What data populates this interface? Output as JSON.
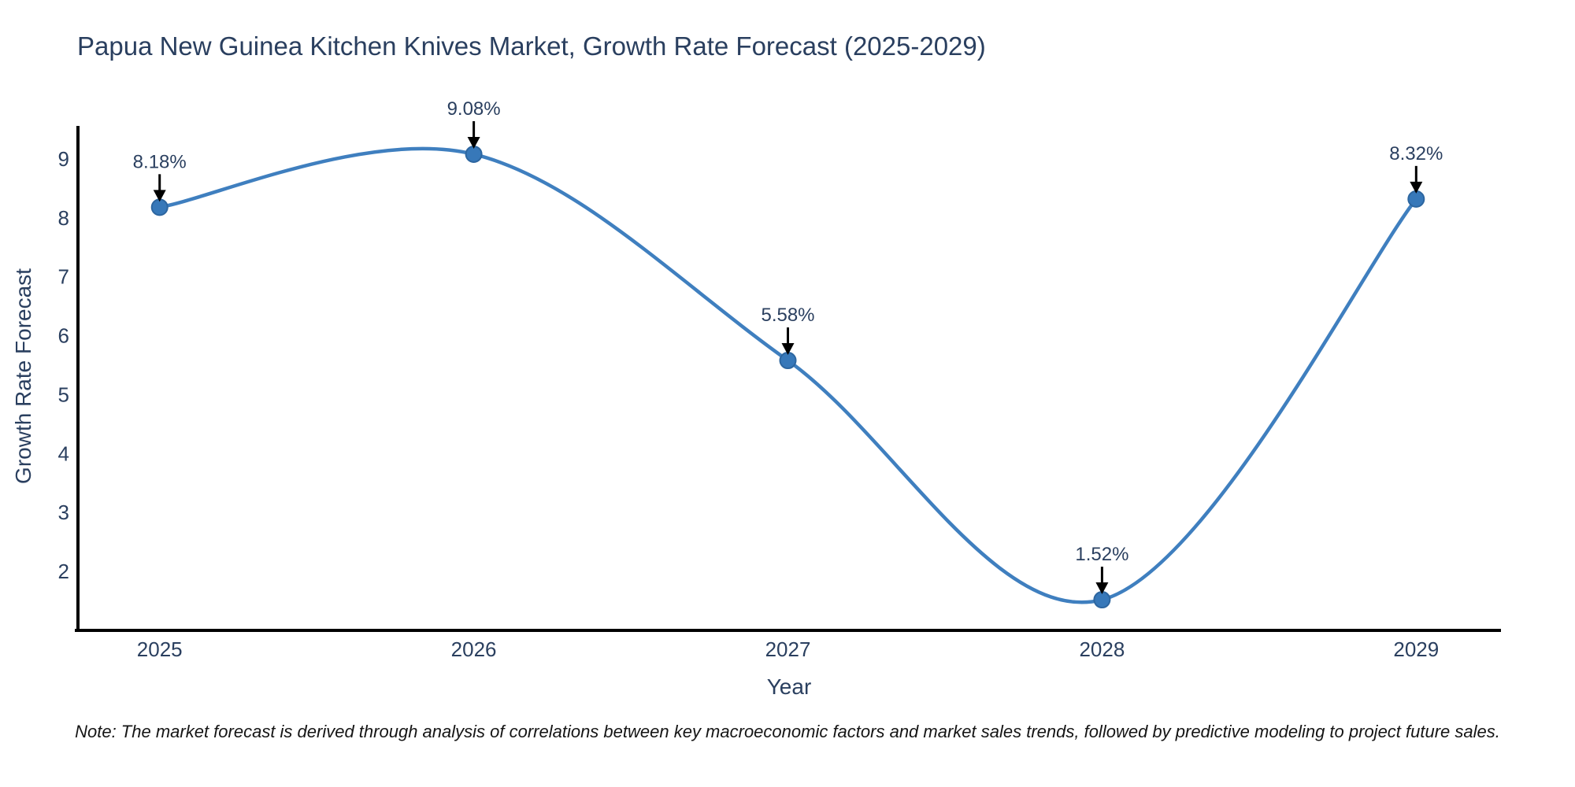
{
  "page": {
    "background": "#ffffff"
  },
  "chart_data": {
    "type": "line",
    "title": "Papua New Guinea Kitchen Knives Market, Growth Rate Forecast (2025-2029)",
    "xlabel": "Year",
    "ylabel": "Growth Rate Forecast",
    "x": [
      2025,
      2026,
      2027,
      2028,
      2029
    ],
    "y": [
      8.18,
      9.08,
      5.58,
      1.52,
      8.32
    ],
    "point_labels": [
      "8.18%",
      "9.08%",
      "5.58%",
      "1.52%",
      "8.32%"
    ],
    "x_tick_labels": [
      "2025",
      "2026",
      "2027",
      "2028",
      "2029"
    ],
    "y_ticks": [
      2,
      3,
      4,
      5,
      6,
      7,
      8,
      9
    ],
    "xlim": [
      2024.74,
      2029.27
    ],
    "ylim": [
      1.0,
      9.56
    ],
    "grid": false,
    "line_shape": "spline",
    "legend_position": "none",
    "colors": {
      "line": "#3f7fbf",
      "marker": "#3778b9",
      "marker_edge": "#2d66a0",
      "axis": "#000000",
      "tick_text": "#2a3f5f",
      "annotation_text": "#2a3f5f",
      "arrow": "#000000"
    }
  },
  "note": "Note: The market forecast is derived through analysis of correlations between key macroeconomic factors and market sales trends, followed by predictive modeling to project future sales."
}
